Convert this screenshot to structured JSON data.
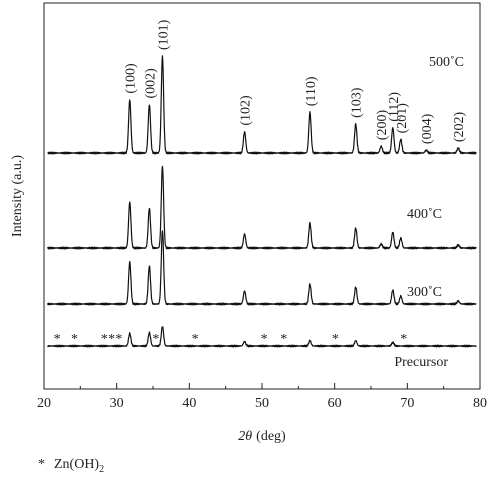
{
  "chart_data": {
    "type": "line",
    "xlabel_var": "2θ",
    "xlabel_unit": "(deg)",
    "ylabel": "Intensity (a.u.)",
    "xlim": [
      20,
      80
    ],
    "xticks": [
      20,
      30,
      40,
      50,
      60,
      70,
      80
    ],
    "y_ticks_shown": false,
    "grid": false,
    "series": [
      {
        "name": "500˚C",
        "baseline": 0,
        "peaks": [
          {
            "x": 31.8,
            "h": 0.55
          },
          {
            "x": 34.5,
            "h": 0.5
          },
          {
            "x": 36.3,
            "h": 1.0
          },
          {
            "x": 47.6,
            "h": 0.22
          },
          {
            "x": 56.6,
            "h": 0.42
          },
          {
            "x": 62.9,
            "h": 0.3
          },
          {
            "x": 66.4,
            "h": 0.07
          },
          {
            "x": 68.0,
            "h": 0.26
          },
          {
            "x": 69.1,
            "h": 0.14
          },
          {
            "x": 72.6,
            "h": 0.03
          },
          {
            "x": 77.0,
            "h": 0.05
          }
        ]
      },
      {
        "name": "400˚C",
        "baseline": 0,
        "peaks": [
          {
            "x": 31.8,
            "h": 0.46
          },
          {
            "x": 34.5,
            "h": 0.4
          },
          {
            "x": 36.3,
            "h": 0.82
          },
          {
            "x": 47.6,
            "h": 0.14
          },
          {
            "x": 56.6,
            "h": 0.25
          },
          {
            "x": 62.9,
            "h": 0.2
          },
          {
            "x": 66.4,
            "h": 0.04
          },
          {
            "x": 68.0,
            "h": 0.16
          },
          {
            "x": 69.1,
            "h": 0.1
          },
          {
            "x": 77.0,
            "h": 0.03
          }
        ]
      },
      {
        "name": "300˚C",
        "baseline": 0,
        "peaks": [
          {
            "x": 31.8,
            "h": 0.42
          },
          {
            "x": 34.5,
            "h": 0.38
          },
          {
            "x": 36.3,
            "h": 0.74
          },
          {
            "x": 47.6,
            "h": 0.13
          },
          {
            "x": 56.6,
            "h": 0.2
          },
          {
            "x": 62.9,
            "h": 0.17
          },
          {
            "x": 68.0,
            "h": 0.14
          },
          {
            "x": 69.1,
            "h": 0.08
          },
          {
            "x": 77.0,
            "h": 0.03
          }
        ]
      },
      {
        "name": "Precursor",
        "baseline": 0,
        "peaks": [
          {
            "x": 31.8,
            "h": 0.14
          },
          {
            "x": 34.5,
            "h": 0.15
          },
          {
            "x": 36.3,
            "h": 0.22
          },
          {
            "x": 47.6,
            "h": 0.05
          },
          {
            "x": 56.6,
            "h": 0.06
          },
          {
            "x": 62.9,
            "h": 0.06
          },
          {
            "x": 68.0,
            "h": 0.04
          }
        ]
      }
    ],
    "peak_labels": [
      {
        "x": 31.8,
        "text": "(100)"
      },
      {
        "x": 34.5,
        "text": "(002)"
      },
      {
        "x": 36.3,
        "text": "(101)"
      },
      {
        "x": 47.6,
        "text": "(102)"
      },
      {
        "x": 56.6,
        "text": "(110)"
      },
      {
        "x": 62.9,
        "text": "(103)"
      },
      {
        "x": 66.4,
        "text": "(200)"
      },
      {
        "x": 68.0,
        "text": "(112)"
      },
      {
        "x": 69.1,
        "text": "(201)"
      },
      {
        "x": 72.6,
        "text": "(004)"
      },
      {
        "x": 77.0,
        "text": "(202)"
      }
    ],
    "impurity_marker": "*",
    "impurity_positions": [
      21.8,
      24.2,
      28.3,
      29.3,
      30.3,
      35.4,
      40.8,
      50.3,
      53.0,
      60.1,
      69.5
    ],
    "footnote_marker": "*",
    "footnote_text": "Zn(OH)",
    "footnote_subscript": "2"
  }
}
